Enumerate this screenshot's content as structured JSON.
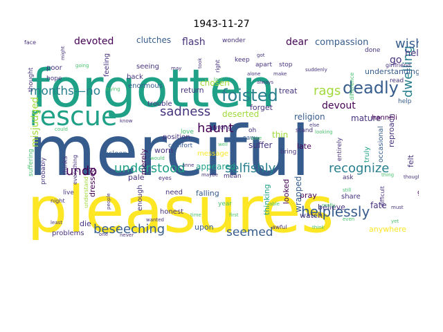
{
  "title": "1943-11-27",
  "palette": [
    "#440154",
    "#46327e",
    "#365c8d",
    "#277f8e",
    "#1fa187",
    "#4ac16d",
    "#a0da39",
    "#fde725"
  ],
  "words": [
    "merciful",
    "pleasures",
    "forgotten",
    "rescue",
    "foisted",
    "deadly",
    "sadness",
    "helplessly",
    "beseeching",
    "understood",
    "recognize",
    "selfishly",
    "undo",
    "haunt",
    "dwelling",
    "months—no",
    "rags",
    "wish",
    "seemed",
    "devoted",
    "flash",
    "dear",
    "compassion",
    "hell",
    "devout",
    "go",
    "misjudged",
    "clutches",
    "religion",
    "understanding",
    "mature",
    "forget",
    "treat",
    "chosen",
    "return",
    "deserted",
    "suffer",
    "thin",
    "late",
    "watch",
    "fate",
    "appeared",
    "falling",
    "pale",
    "dressed",
    "worn",
    "die",
    "problems",
    "upon",
    "anywhere",
    "truly",
    "reproach",
    "hanneli",
    "felt",
    "occasional",
    "help",
    "pray",
    "believe",
    "wrapped",
    "thinking",
    "looked",
    "share",
    "god",
    "message",
    "merely",
    "position",
    "comfort",
    "honest",
    "need",
    "enough",
    "asleep",
    "thinks",
    "probably",
    "suffering",
    "feeling",
    "seeing",
    "trouble",
    "enormous",
    "back",
    "poor",
    "hope",
    "thought",
    "wonder",
    "keep",
    "apart",
    "stop",
    "done",
    "read",
    "girlfriend",
    "difference",
    "entirely",
    "stand",
    "bring",
    "ask",
    "year",
    "love",
    "wrong",
    "oh",
    "saw",
    "mean",
    "eyes",
    "night",
    "live",
    "understand",
    "everything",
    "difficult",
    "though",
    "must",
    "yet",
    "really",
    "able",
    "awful",
    "people",
    "least",
    "one",
    "never",
    "wanted",
    "trying",
    "know",
    "face",
    "might",
    "going",
    "may",
    "took",
    "right",
    "last",
    "always",
    "alone",
    "make",
    "suddenly",
    "else",
    "looking",
    "even",
    "take",
    "maybe",
    "anne",
    "thing",
    "got",
    "think",
    "first",
    "well",
    "would",
    "time",
    "still",
    "could"
  ]
}
